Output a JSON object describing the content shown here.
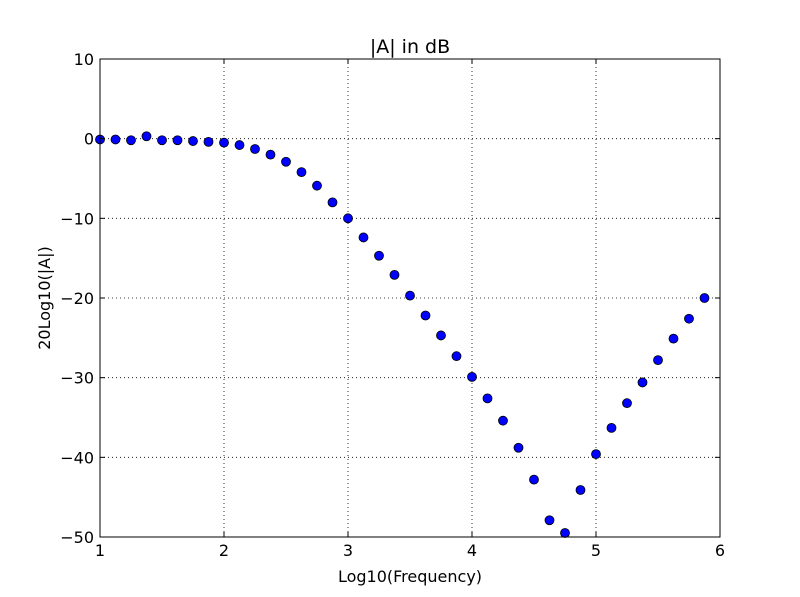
{
  "chart_data": {
    "type": "scatter",
    "title": "|A| in dB",
    "xlabel": "Log10(Frequency)",
    "ylabel": "20Log10(|A|)",
    "xlim": [
      1,
      6
    ],
    "ylim": [
      -50,
      10
    ],
    "xticks": [
      1,
      2,
      3,
      4,
      5,
      6
    ],
    "yticks": [
      10,
      0,
      -10,
      -20,
      -30,
      -40,
      -50
    ],
    "xtick_labels": [
      "1",
      "2",
      "3",
      "4",
      "5",
      "6"
    ],
    "ytick_labels": [
      "10",
      "0",
      "−10",
      "−20",
      "−30",
      "−40",
      "−50"
    ],
    "grid": true,
    "grid_style": "dotted",
    "marker": "circle",
    "color": "#0000ff",
    "edge_color": "#000000",
    "series": [
      {
        "x": [
          1.0,
          1.125,
          1.25,
          1.375,
          1.5,
          1.625,
          1.75,
          1.875,
          2.0,
          2.125,
          2.25,
          2.375,
          2.5,
          2.625,
          2.75,
          2.875,
          3.0,
          3.125,
          3.25,
          3.375,
          3.5,
          3.625,
          3.75,
          3.875,
          4.0,
          4.125,
          4.25,
          4.375,
          4.5,
          4.625,
          4.75,
          4.875,
          5.0,
          5.125,
          5.25,
          5.375,
          5.5,
          5.625,
          5.75,
          5.875
        ],
        "y": [
          -0.1,
          -0.1,
          -0.2,
          0.3,
          -0.2,
          -0.2,
          -0.3,
          -0.4,
          -0.5,
          -0.8,
          -1.3,
          -2.0,
          -2.9,
          -4.2,
          -5.9,
          -8.0,
          -10.0,
          -12.4,
          -14.7,
          -17.1,
          -19.7,
          -22.2,
          -24.7,
          -27.3,
          -29.9,
          -32.6,
          -35.4,
          -38.8,
          -42.8,
          -47.9,
          -49.5,
          -44.1,
          -39.6,
          -36.3,
          -33.2,
          -30.6,
          -27.8,
          -25.1,
          -22.6,
          -20.0
        ]
      }
    ]
  }
}
